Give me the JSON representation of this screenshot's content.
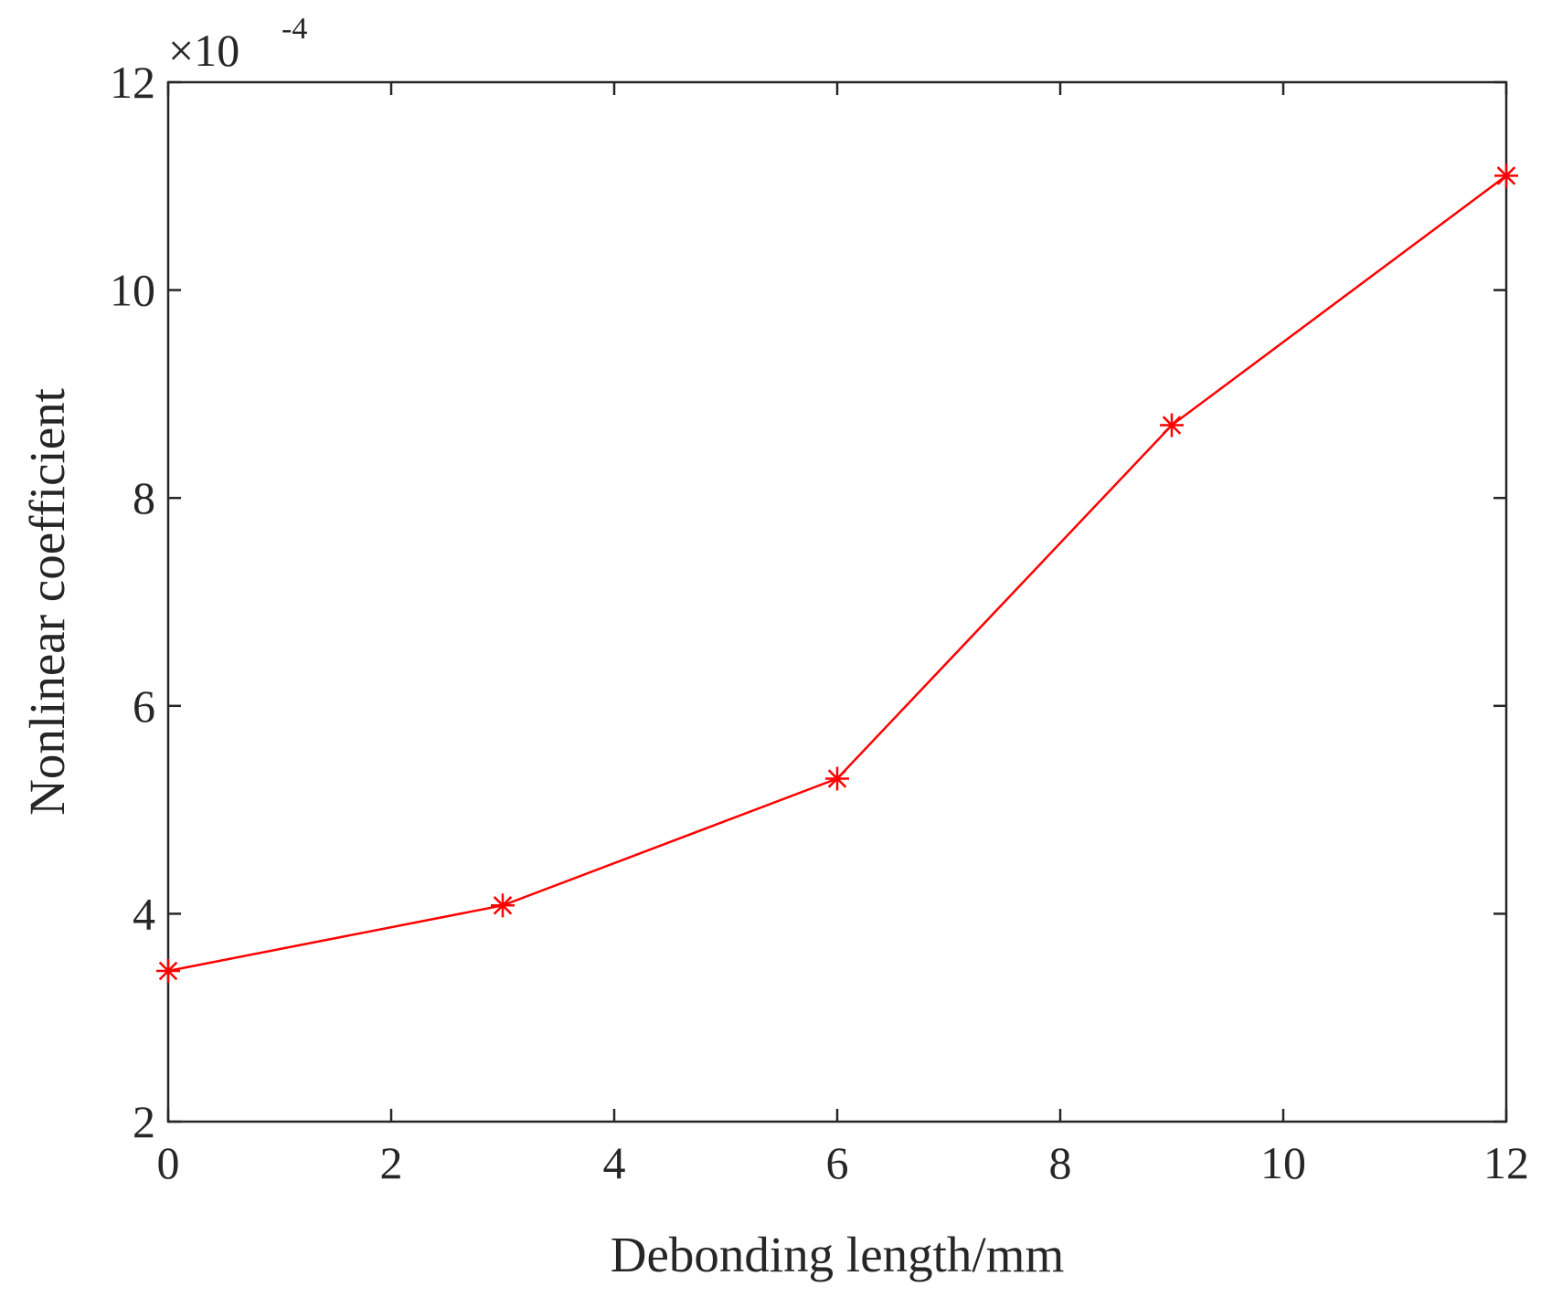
{
  "chart_data": {
    "type": "line",
    "xlabel": "Debonding length/mm",
    "ylabel": "Nonlinear coefficient",
    "exponent_label": {
      "base": "×10",
      "power": "-4"
    },
    "xlim": [
      0,
      12
    ],
    "ylim": [
      2,
      12
    ],
    "x_ticks": [
      0,
      2,
      4,
      6,
      8,
      10,
      12
    ],
    "y_ticks": [
      2,
      4,
      6,
      8,
      10,
      12
    ],
    "grid": false,
    "series": [
      {
        "color": "#ff0000",
        "marker": "asterisk",
        "x": [
          0,
          3,
          6,
          9,
          12
        ],
        "y": [
          3.45,
          4.08,
          5.3,
          8.7,
          11.1
        ]
      }
    ]
  }
}
